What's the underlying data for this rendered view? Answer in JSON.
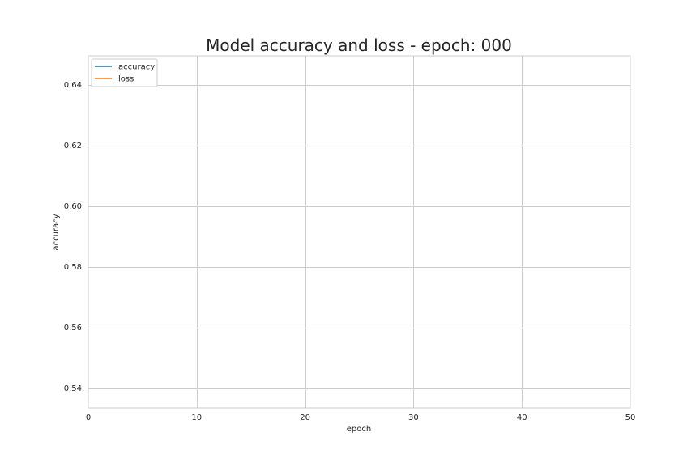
{
  "chart_data": {
    "type": "line",
    "title": "Model accuracy and loss - epoch: 000",
    "xlabel": "epoch",
    "ylabel": "accuracy",
    "xlim": [
      0,
      50
    ],
    "ylim": [
      0.5335,
      0.6495
    ],
    "x_ticks": [
      0,
      10,
      20,
      30,
      40,
      50
    ],
    "y_ticks": [
      0.54,
      0.56,
      0.58,
      0.6,
      0.62,
      0.64
    ],
    "x_tick_labels": [
      "0",
      "10",
      "20",
      "30",
      "40",
      "50"
    ],
    "y_tick_labels": [
      "0.54",
      "0.56",
      "0.58",
      "0.60",
      "0.62",
      "0.64"
    ],
    "grid": true,
    "legend_position": "top-left",
    "series": [
      {
        "name": "accuracy",
        "color": "#1f77b4",
        "x": [],
        "y": []
      },
      {
        "name": "loss",
        "color": "#ff7f0e",
        "x": [],
        "y": []
      }
    ]
  }
}
